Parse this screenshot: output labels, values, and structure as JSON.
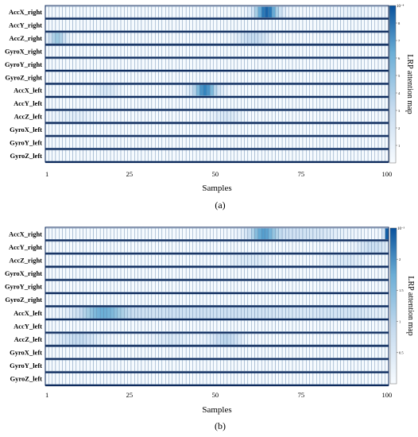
{
  "chart_data": [
    {
      "type": "heatmap",
      "panel_label": "(a)",
      "xlabel": "Samples",
      "colorbar_label": "LRP attention map",
      "colorbar_exponent": "10⁻⁴",
      "colorbar_ticks": [
        "1",
        "2",
        "3",
        "4",
        "5",
        "6",
        "7",
        "8"
      ],
      "x_ticks": [
        1,
        25,
        50,
        75,
        100
      ],
      "xlim": [
        1,
        100
      ],
      "rows": [
        "AccX_right",
        "AccY_right",
        "AccZ_right",
        "GyroX_right",
        "GyroY_right",
        "GyroZ_right",
        "AccX_left",
        "AccY_left",
        "AccZ_left",
        "GyroX_left",
        "GyroY_left",
        "GyroZ_left"
      ],
      "vmin": 0,
      "vmax": 9,
      "hotspots": [
        {
          "row": "AccX_right",
          "center": 65,
          "width": 2.5,
          "value": 8.5
        },
        {
          "row": "AccZ_right",
          "center": 4,
          "width": 1.8,
          "value": 4.5
        },
        {
          "row": "AccZ_right",
          "center": 61,
          "width": 3,
          "value": 3.0
        },
        {
          "row": "AccX_left",
          "center": 47,
          "width": 2.5,
          "value": 7.5
        },
        {
          "row": "AccX_left",
          "center": 18,
          "width": 2.5,
          "value": 1.5
        },
        {
          "row": "AccZ_left",
          "center": 9,
          "width": 4,
          "value": 1.0
        },
        {
          "row": "AccZ_left",
          "center": 53,
          "width": 3,
          "value": 1.5
        },
        {
          "row": "AccX_right",
          "center": 90,
          "width": 6,
          "value": 0.6
        }
      ]
    },
    {
      "type": "heatmap",
      "panel_label": "(b)",
      "xlabel": "Samples",
      "colorbar_label": "LRP attention map",
      "colorbar_exponent": "10⁻³",
      "colorbar_ticks": [
        "0.5",
        "1",
        "1.5",
        "2"
      ],
      "x_ticks": [
        1,
        25,
        50,
        75,
        100
      ],
      "xlim": [
        1,
        100
      ],
      "rows": [
        "AccX_right",
        "AccY_right",
        "AccZ_right",
        "GyroX_right",
        "GyroY_right",
        "GyroZ_right",
        "AccX_left",
        "AccY_left",
        "AccZ_left",
        "GyroX_left",
        "GyroY_left",
        "GyroZ_left"
      ],
      "vmin": 0,
      "vmax": 2.5,
      "hotspots": [
        {
          "row": "AccX_right",
          "center": 100,
          "width": 0.6,
          "value": 2.4
        },
        {
          "row": "AccX_right",
          "center": 64,
          "width": 3,
          "value": 1.6
        },
        {
          "row": "AccX_right",
          "center": 75,
          "width": 8,
          "value": 0.6
        },
        {
          "row": "AccY_right",
          "center": 96,
          "width": 3,
          "value": 0.7
        },
        {
          "row": "AccZ_right",
          "center": 60,
          "width": 4,
          "value": 0.4
        },
        {
          "row": "AccZ_right",
          "center": 88,
          "width": 4,
          "value": 0.4
        },
        {
          "row": "AccX_left",
          "center": 17,
          "width": 5,
          "value": 1.4
        },
        {
          "row": "AccX_left",
          "center": 35,
          "width": 14,
          "value": 0.6
        },
        {
          "row": "AccX_left",
          "center": 62,
          "width": 12,
          "value": 0.5
        },
        {
          "row": "AccX_left",
          "center": 88,
          "width": 8,
          "value": 0.5
        },
        {
          "row": "AccZ_left",
          "center": 10,
          "width": 4,
          "value": 0.8
        },
        {
          "row": "AccZ_left",
          "center": 53,
          "width": 3,
          "value": 0.9
        },
        {
          "row": "AccZ_left",
          "center": 37,
          "width": 4,
          "value": 0.4
        }
      ]
    }
  ]
}
